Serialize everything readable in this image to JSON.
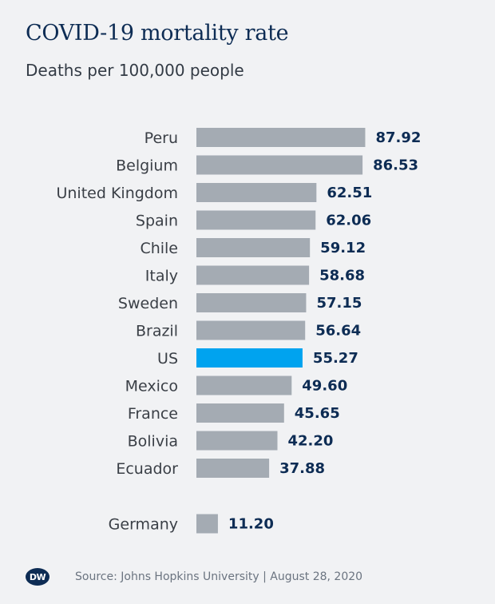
{
  "header": {
    "title": "COVID-19 mortality rate",
    "subtitle": "Deaths per 100,000 people"
  },
  "footer": {
    "logo_text": "DW",
    "source": "Source: Johns Hopkins University | August 28, 2020"
  },
  "colors": {
    "bar": "#a4abb3",
    "highlight": "#00a3ef",
    "value_text": "#0d2c54",
    "background": "#f1f2f4"
  },
  "chart_data": {
    "type": "bar",
    "orientation": "horizontal",
    "title": "COVID-19 mortality rate",
    "subtitle": "Deaths per 100,000 people",
    "categories": [
      "Peru",
      "Belgium",
      "United Kingdom",
      "Spain",
      "Chile",
      "Italy",
      "Sweden",
      "Brazil",
      "US",
      "Mexico",
      "France",
      "Bolivia",
      "Ecuador",
      "Germany"
    ],
    "values": [
      87.92,
      86.53,
      62.51,
      62.06,
      59.12,
      58.68,
      57.15,
      56.64,
      55.27,
      49.6,
      45.65,
      42.2,
      37.88,
      11.2
    ],
    "value_labels": [
      "87.92",
      "86.53",
      "62.51",
      "62.06",
      "59.12",
      "58.68",
      "57.15",
      "56.64",
      "55.27",
      "49.60",
      "45.65",
      "42.20",
      "37.88",
      "11.20"
    ],
    "highlighted": "US",
    "separated": "Germany",
    "xlim": [
      0,
      100
    ],
    "grid": false,
    "legend": "none"
  }
}
